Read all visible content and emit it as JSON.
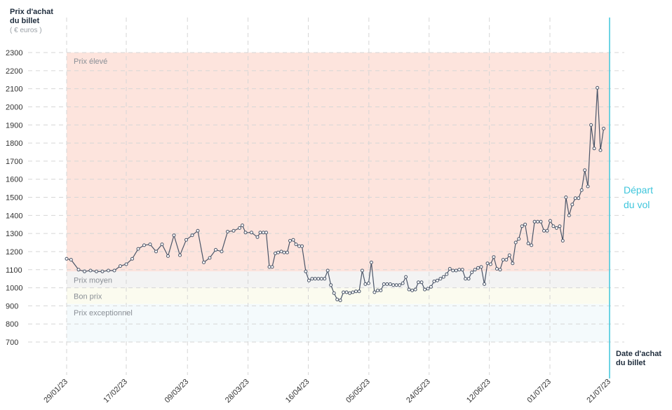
{
  "chart_data": {
    "type": "line",
    "ylabel_line1": "Prix d'achat",
    "ylabel_line2": "du billet",
    "yunit": "( € euros )",
    "xlabel_line1": "Date d'achat",
    "xlabel_line2": "du billet",
    "departure_line1": "Départ",
    "departure_line2": "du vol",
    "ylim": [
      700,
      2300
    ],
    "yticks": [
      700,
      800,
      900,
      1000,
      1100,
      1200,
      1300,
      1400,
      1500,
      1600,
      1700,
      1800,
      1900,
      2000,
      2100,
      2200,
      2300
    ],
    "xlim": [
      0,
      173
    ],
    "xticks": [
      {
        "label": "29/01/23",
        "x": 0
      },
      {
        "label": "17/02/23",
        "x": 19
      },
      {
        "label": "09/03/23",
        "x": 38.5
      },
      {
        "label": "28/03/23",
        "x": 57.8
      },
      {
        "label": "16/04/23",
        "x": 77
      },
      {
        "label": "05/05/23",
        "x": 96.3
      },
      {
        "label": "24/05/23",
        "x": 115.5
      },
      {
        "label": "12/06/23",
        "x": 134.7
      },
      {
        "label": "01/07/23",
        "x": 154
      },
      {
        "label": "21/07/23",
        "x": 173
      }
    ],
    "zones": [
      {
        "label": "Prix élevé",
        "from": 1090,
        "to": 2300,
        "color": "#fde4dd"
      },
      {
        "label": "Prix moyen",
        "from": 1000,
        "to": 1090,
        "color": "#f3f3f3"
      },
      {
        "label": "Bon prix",
        "from": 910,
        "to": 1000,
        "color": "#fbfbef"
      },
      {
        "label": "Prix exceptionnel",
        "from": 700,
        "to": 910,
        "color": "#f4fafc"
      }
    ],
    "colors": {
      "line": "#4a5568",
      "marker_fill": "#ffffff",
      "departure": "#3fc6dc",
      "grid": "#d6d6d6",
      "zone_text": "#8a8f96",
      "tick_text": "#333333"
    },
    "grid": true,
    "series": [
      {
        "values": [
          [
            0,
            1160
          ],
          [
            1.4,
            1155
          ],
          [
            3.8,
            1100
          ],
          [
            5.7,
            1090
          ],
          [
            7.6,
            1095
          ],
          [
            9.5,
            1090
          ],
          [
            11.4,
            1090
          ],
          [
            13.3,
            1095
          ],
          [
            15.2,
            1095
          ],
          [
            17.1,
            1120
          ],
          [
            19,
            1130
          ],
          [
            20.9,
            1160
          ],
          [
            22.8,
            1215
          ],
          [
            24.7,
            1235
          ],
          [
            26.6,
            1240
          ],
          [
            28.5,
            1200
          ],
          [
            30.4,
            1240
          ],
          [
            32.3,
            1175
          ],
          [
            34.2,
            1290
          ],
          [
            36.1,
            1180
          ],
          [
            38.1,
            1265
          ],
          [
            40,
            1290
          ],
          [
            41.8,
            1315
          ],
          [
            43.7,
            1140
          ],
          [
            45.6,
            1165
          ],
          [
            47.5,
            1210
          ],
          [
            49.4,
            1200
          ],
          [
            51.3,
            1310
          ],
          [
            53.2,
            1315
          ],
          [
            55.1,
            1330
          ],
          [
            56,
            1345
          ],
          [
            57,
            1305
          ],
          [
            58.9,
            1305
          ],
          [
            60.8,
            1280
          ],
          [
            61.7,
            1305
          ],
          [
            62.7,
            1305
          ],
          [
            63.6,
            1305
          ],
          [
            64.6,
            1115
          ],
          [
            65.5,
            1115
          ],
          [
            66.5,
            1190
          ],
          [
            67.4,
            1195
          ],
          [
            68.4,
            1200
          ],
          [
            69.3,
            1195
          ],
          [
            70.3,
            1195
          ],
          [
            71.2,
            1260
          ],
          [
            72.2,
            1265
          ],
          [
            73.1,
            1240
          ],
          [
            74.1,
            1230
          ],
          [
            75,
            1230
          ],
          [
            76.2,
            1090
          ],
          [
            77.2,
            1040
          ],
          [
            78.2,
            1050
          ],
          [
            79.2,
            1050
          ],
          [
            80.2,
            1050
          ],
          [
            81.2,
            1050
          ],
          [
            82.2,
            1050
          ],
          [
            83.2,
            1095
          ],
          [
            84.2,
            1015
          ],
          [
            85.2,
            970
          ],
          [
            86.2,
            935
          ],
          [
            87.2,
            930
          ],
          [
            88.2,
            975
          ],
          [
            89.2,
            975
          ],
          [
            90.2,
            970
          ],
          [
            91.2,
            975
          ],
          [
            92.2,
            980
          ],
          [
            93.2,
            980
          ],
          [
            94.2,
            1095
          ],
          [
            95.2,
            1020
          ],
          [
            96.2,
            1025
          ],
          [
            97.1,
            1140
          ],
          [
            98.1,
            975
          ],
          [
            99.1,
            985
          ],
          [
            100.1,
            985
          ],
          [
            101.1,
            1020
          ],
          [
            102.1,
            1020
          ],
          [
            103.1,
            1020
          ],
          [
            104.1,
            1015
          ],
          [
            105.1,
            1015
          ],
          [
            106.1,
            1015
          ],
          [
            107.1,
            1025
          ],
          [
            108.1,
            1060
          ],
          [
            109.1,
            990
          ],
          [
            110.1,
            985
          ],
          [
            111.1,
            990
          ],
          [
            112.1,
            1030
          ],
          [
            113.1,
            1030
          ],
          [
            114.1,
            990
          ],
          [
            115.1,
            995
          ],
          [
            116.1,
            1005
          ],
          [
            117.1,
            1035
          ],
          [
            118.1,
            1040
          ],
          [
            119.1,
            1050
          ],
          [
            120.1,
            1060
          ],
          [
            121.1,
            1075
          ],
          [
            122.1,
            1105
          ],
          [
            123.1,
            1095
          ],
          [
            124.1,
            1095
          ],
          [
            125.1,
            1100
          ],
          [
            126.1,
            1100
          ],
          [
            127.1,
            1050
          ],
          [
            128.1,
            1050
          ],
          [
            129.1,
            1085
          ],
          [
            130.1,
            1100
          ],
          [
            131.1,
            1110
          ],
          [
            132.1,
            1115
          ],
          [
            133.1,
            1020
          ],
          [
            134.1,
            1135
          ],
          [
            135.1,
            1130
          ],
          [
            136.1,
            1170
          ],
          [
            137.1,
            1105
          ],
          [
            138.1,
            1100
          ],
          [
            139.1,
            1155
          ],
          [
            140.1,
            1155
          ],
          [
            141.1,
            1180
          ],
          [
            142.1,
            1135
          ],
          [
            143.1,
            1250
          ],
          [
            144.1,
            1270
          ],
          [
            145.1,
            1340
          ],
          [
            146.1,
            1350
          ],
          [
            147.1,
            1245
          ],
          [
            148.1,
            1235
          ],
          [
            149.1,
            1365
          ],
          [
            150.1,
            1365
          ],
          [
            151.1,
            1365
          ],
          [
            152.1,
            1315
          ],
          [
            153.1,
            1315
          ],
          [
            154.1,
            1370
          ],
          [
            155.1,
            1340
          ],
          [
            156.1,
            1330
          ],
          [
            157.1,
            1340
          ],
          [
            158.1,
            1260
          ],
          [
            159.1,
            1500
          ],
          [
            160.1,
            1400
          ],
          [
            161.1,
            1460
          ],
          [
            162.1,
            1495
          ],
          [
            163.1,
            1495
          ],
          [
            164.1,
            1540
          ],
          [
            165.1,
            1650
          ],
          [
            166.1,
            1560
          ],
          [
            167.1,
            1900
          ],
          [
            168.1,
            1770
          ],
          [
            169.1,
            2105
          ],
          [
            170.1,
            1760
          ],
          [
            171.1,
            1880
          ]
        ]
      }
    ]
  }
}
